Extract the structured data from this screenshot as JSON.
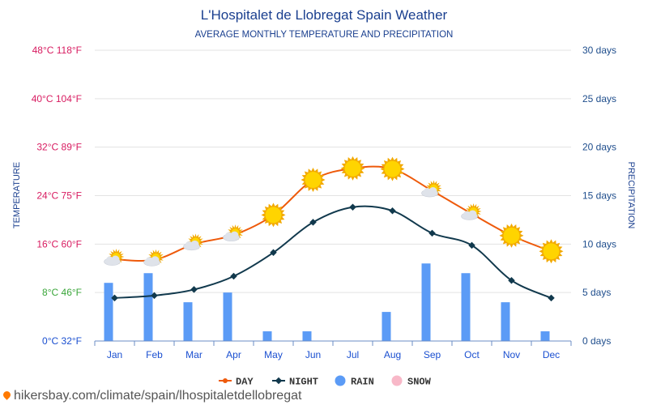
{
  "chart_data": {
    "type": "line",
    "title": "L'Hospitalet de Llobregat Spain Weather",
    "subtitle": "AVERAGE MONTHLY TEMPERATURE AND PRECIPITATION",
    "ylabel_left": "TEMPERATURE",
    "ylabel_right": "PRECIPITATION",
    "categories": [
      "Jan",
      "Feb",
      "Mar",
      "Apr",
      "May",
      "Jun",
      "Jul",
      "Aug",
      "Sep",
      "Oct",
      "Nov",
      "Dec"
    ],
    "temp_ticks": [
      "0°C 32°F",
      "8°C 46°F",
      "16°C 60°F",
      "24°C 75°F",
      "32°C 89°F",
      "40°C 104°F",
      "48°C 118°F"
    ],
    "temp_tick_colors": [
      "#1a4fd0",
      "#3aa63a",
      "#d81b60",
      "#d81b60",
      "#d81b60",
      "#d81b60",
      "#d81b60"
    ],
    "precip_ticks": [
      "0 days",
      "5 days",
      "10 days",
      "15 days",
      "20 days",
      "25 days",
      "30 days"
    ],
    "temp_range": [
      0,
      48
    ],
    "precip_range": [
      0,
      30
    ],
    "series": [
      {
        "name": "DAY",
        "color": "#ee5a0b",
        "values": [
          13.5,
          13.4,
          16.0,
          17.5,
          20.8,
          26.6,
          28.5,
          28.4,
          24.8,
          21.0,
          17.4,
          14.8
        ]
      },
      {
        "name": "NIGHT",
        "color": "#11394d",
        "values": [
          7.1,
          7.5,
          8.5,
          10.7,
          14.6,
          19.6,
          22.1,
          21.5,
          17.8,
          15.8,
          10.0,
          7.1
        ]
      },
      {
        "name": "RAIN",
        "color": "#5b9bf6",
        "type": "bar",
        "values": [
          6,
          7,
          4,
          5,
          1,
          1,
          0,
          3,
          8,
          7,
          4,
          1
        ]
      },
      {
        "name": "SNOW",
        "color": "#f8b8c8",
        "type": "bar",
        "values": [
          0,
          0,
          0,
          0,
          0,
          0,
          0,
          0,
          0,
          0,
          0,
          0
        ]
      }
    ],
    "weather_icons": [
      "partly-cloudy",
      "partly-cloudy",
      "partly-cloudy",
      "partly-cloudy",
      "sunny",
      "sunny",
      "sunny",
      "sunny",
      "partly-cloudy",
      "partly-cloudy",
      "sunny",
      "sunny"
    ],
    "legend": [
      "DAY",
      "NIGHT",
      "RAIN",
      "SNOW"
    ]
  },
  "footer": {
    "url": "hikersbay.com/climate/spain/lhospitaletdellobregat"
  },
  "colors": {
    "title": "#1a3f8f",
    "subtitle": "#1a3f8f",
    "month": "#1a4fd0",
    "precip_tick": "#1e4d8c",
    "grid": "#e3e3e3",
    "axis": "#6b8cc4",
    "sun": "#ffd400",
    "sun_edge": "#f2a900",
    "cloud": "#dfe3ea"
  }
}
